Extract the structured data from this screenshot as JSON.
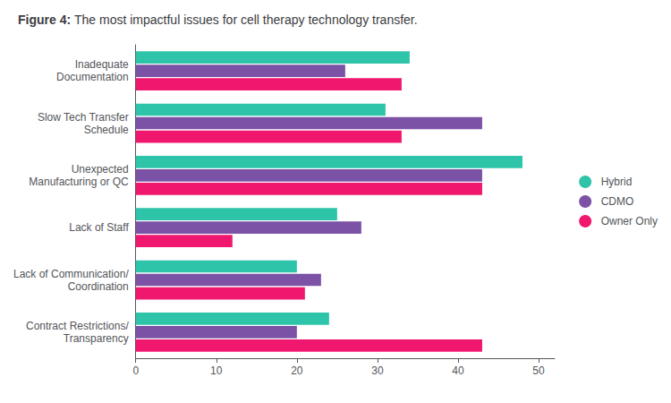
{
  "chart_data": {
    "type": "bar",
    "orientation": "horizontal",
    "title": "Figure 4:",
    "subtitle": "The most impactful issues for cell therapy technology transfer.",
    "categories": [
      "Inadequate\nDocumentation",
      "Slow Tech Transfer\nSchedule",
      "Unexpected\nManufacturing or QC",
      "Lack of Staff",
      "Lack of Communication/\nCoordination",
      "Contract Restrictions/\nTransparency"
    ],
    "series": [
      {
        "name": "Hybrid",
        "color": "#2ec4a9",
        "values": [
          34,
          31,
          48,
          25,
          20,
          24
        ]
      },
      {
        "name": "CDMO",
        "color": "#7b52a6",
        "values": [
          26,
          43,
          43,
          28,
          23,
          20
        ]
      },
      {
        "name": "Owner Only",
        "color": "#f0186e",
        "values": [
          33,
          33,
          43,
          12,
          21,
          43
        ]
      }
    ],
    "xlim": [
      0,
      52
    ],
    "xticks": [
      0,
      10,
      20,
      30,
      40,
      50
    ],
    "grid": false,
    "legend": "right"
  }
}
